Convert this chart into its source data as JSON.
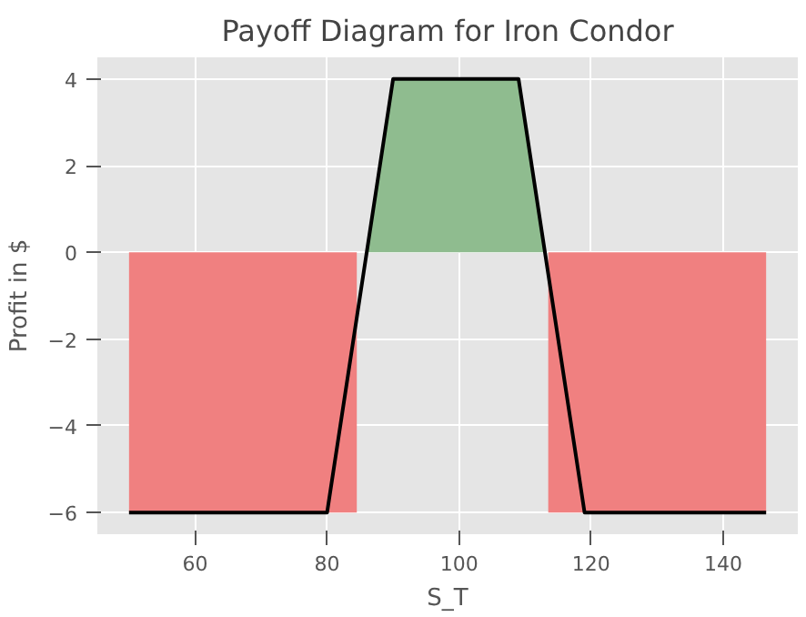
{
  "chart_data": {
    "type": "line",
    "title": "Payoff Diagram for Iron Condor",
    "xlabel": "S_T",
    "ylabel": "Profit in $",
    "xlim": [
      45.2,
      151.3
    ],
    "ylim": [
      -6.5,
      4.5
    ],
    "xticks": [
      60,
      80,
      100,
      120,
      140
    ],
    "yticks": [
      -6,
      -4,
      -2,
      0,
      2,
      4
    ],
    "grid": true,
    "series": [
      {
        "type": "area",
        "color": "#f08080",
        "x": [
          50,
          84.5
        ],
        "values": [
          -6,
          -6
        ]
      },
      {
        "type": "area",
        "color": "#f08080",
        "x": [
          113.5,
          146.5
        ],
        "values": [
          -6,
          -6
        ]
      },
      {
        "type": "area",
        "color": "#8fbc8f",
        "x": [
          86,
          90,
          109,
          113
        ],
        "values": [
          0,
          4,
          4,
          0
        ]
      },
      {
        "color": "#000000",
        "x": [
          50,
          80,
          90,
          109,
          119,
          146.5
        ],
        "values": [
          -6,
          -6,
          4,
          4,
          -6,
          -6
        ]
      }
    ]
  }
}
